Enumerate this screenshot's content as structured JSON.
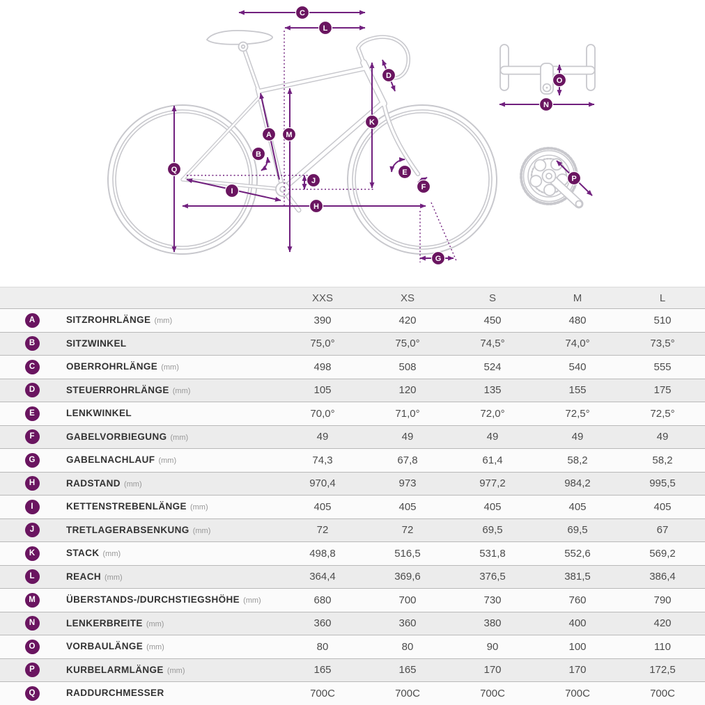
{
  "colors": {
    "arrow_purple": "#71207e",
    "badge_purple": "#6a1560",
    "line_art_gray": "#c8c8cd",
    "row_alt_gray": "#ececec"
  },
  "diagram": {
    "markers": {
      "A": "A",
      "B": "B",
      "C": "C",
      "D": "D",
      "E": "E",
      "F": "F",
      "G": "G",
      "H": "H",
      "I": "I",
      "J": "J",
      "K": "K",
      "L": "L",
      "M": "M",
      "N": "N",
      "O": "O",
      "P": "P",
      "Q": "Q"
    }
  },
  "table": {
    "size_headers": [
      "XXS",
      "XS",
      "S",
      "M",
      "L"
    ],
    "rows": [
      {
        "letter": "A",
        "name": "SITZROHRLÄNGE",
        "unit": "(mm)",
        "values": [
          "390",
          "420",
          "450",
          "480",
          "510"
        ]
      },
      {
        "letter": "B",
        "name": "SITZWINKEL",
        "unit": "",
        "values": [
          "75,0°",
          "75,0°",
          "74,5°",
          "74,0°",
          "73,5°"
        ]
      },
      {
        "letter": "C",
        "name": "OBERROHRLÄNGE",
        "unit": "(mm)",
        "values": [
          "498",
          "508",
          "524",
          "540",
          "555"
        ]
      },
      {
        "letter": "D",
        "name": "STEUERROHRLÄNGE",
        "unit": "(mm)",
        "values": [
          "105",
          "120",
          "135",
          "155",
          "175"
        ]
      },
      {
        "letter": "E",
        "name": "LENKWINKEL",
        "unit": "",
        "values": [
          "70,0°",
          "71,0°",
          "72,0°",
          "72,5°",
          "72,5°"
        ]
      },
      {
        "letter": "F",
        "name": "GABELVORBIEGUNG",
        "unit": "(mm)",
        "values": [
          "49",
          "49",
          "49",
          "49",
          "49"
        ]
      },
      {
        "letter": "G",
        "name": "GABELNACHLAUF",
        "unit": "(mm)",
        "values": [
          "74,3",
          "67,8",
          "61,4",
          "58,2",
          "58,2"
        ]
      },
      {
        "letter": "H",
        "name": "RADSTAND",
        "unit": "(mm)",
        "values": [
          "970,4",
          "973",
          "977,2",
          "984,2",
          "995,5"
        ]
      },
      {
        "letter": "I",
        "name": "KETTENSTREBENLÄNGE",
        "unit": "(mm)",
        "values": [
          "405",
          "405",
          "405",
          "405",
          "405"
        ]
      },
      {
        "letter": "J",
        "name": "TRETLAGERABSENKUNG",
        "unit": "(mm)",
        "values": [
          "72",
          "72",
          "69,5",
          "69,5",
          "67"
        ]
      },
      {
        "letter": "K",
        "name": "STACK",
        "unit": "(mm)",
        "values": [
          "498,8",
          "516,5",
          "531,8",
          "552,6",
          "569,2"
        ]
      },
      {
        "letter": "L",
        "name": "REACH",
        "unit": "(mm)",
        "values": [
          "364,4",
          "369,6",
          "376,5",
          "381,5",
          "386,4"
        ]
      },
      {
        "letter": "M",
        "name": "ÜBERSTANDS-/DURCHSTIEGSHÖHE",
        "unit": "(mm)",
        "values": [
          "680",
          "700",
          "730",
          "760",
          "790"
        ]
      },
      {
        "letter": "N",
        "name": "LENKERBREITE",
        "unit": "(mm)",
        "values": [
          "360",
          "360",
          "380",
          "400",
          "420"
        ]
      },
      {
        "letter": "O",
        "name": "VORBAULÄNGE",
        "unit": "(mm)",
        "values": [
          "80",
          "80",
          "90",
          "100",
          "110"
        ]
      },
      {
        "letter": "P",
        "name": "KURBELARMLÄNGE",
        "unit": "(mm)",
        "values": [
          "165",
          "165",
          "170",
          "170",
          "172,5"
        ]
      },
      {
        "letter": "Q",
        "name": "RADDURCHMESSER",
        "unit": "",
        "values": [
          "700C",
          "700C",
          "700C",
          "700C",
          "700C"
        ]
      }
    ]
  }
}
